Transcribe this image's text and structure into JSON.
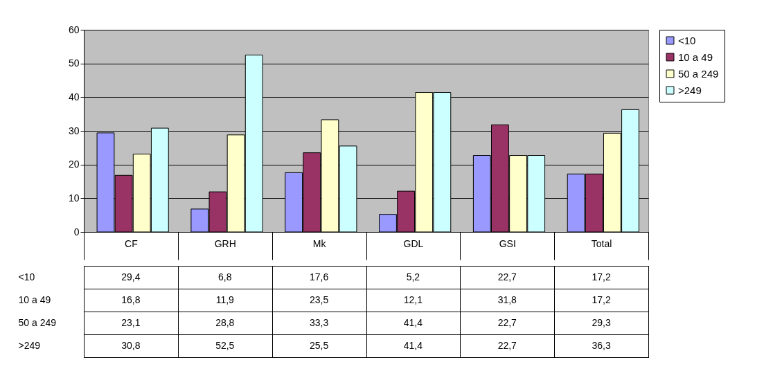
{
  "chart_data": {
    "type": "bar",
    "categories": [
      "CF",
      "GRH",
      "Mk",
      "GDL",
      "GSI",
      "Total"
    ],
    "series": [
      {
        "name": "<10",
        "color": "#9999ff",
        "values": [
          29.4,
          6.8,
          17.6,
          5.2,
          22.7,
          17.2
        ],
        "value_labels": [
          "29,4",
          "6,8",
          "17,6",
          "5,2",
          "22,7",
          "17,2"
        ]
      },
      {
        "name": "10 a 49",
        "color": "#993366",
        "values": [
          16.8,
          11.9,
          23.5,
          12.1,
          31.8,
          17.2
        ],
        "value_labels": [
          "16,8",
          "11,9",
          "23,5",
          "12,1",
          "31,8",
          "17,2"
        ]
      },
      {
        "name": "50 a 249",
        "color": "#ffffcc",
        "values": [
          23.1,
          28.8,
          33.3,
          41.4,
          22.7,
          29.3
        ],
        "value_labels": [
          "23,1",
          "28,8",
          "33,3",
          "41,4",
          "22,7",
          "29,3"
        ]
      },
      {
        "name": ">249",
        "color": "#ccffff",
        "values": [
          30.8,
          52.5,
          25.5,
          41.4,
          22.7,
          36.3
        ],
        "value_labels": [
          "30,8",
          "52,5",
          "25,5",
          "41,4",
          "22,7",
          "36,3"
        ]
      }
    ],
    "ylim": [
      0,
      60
    ],
    "yticks": [
      0,
      10,
      20,
      30,
      40,
      50,
      60
    ],
    "grid": "y",
    "legend": "right"
  }
}
